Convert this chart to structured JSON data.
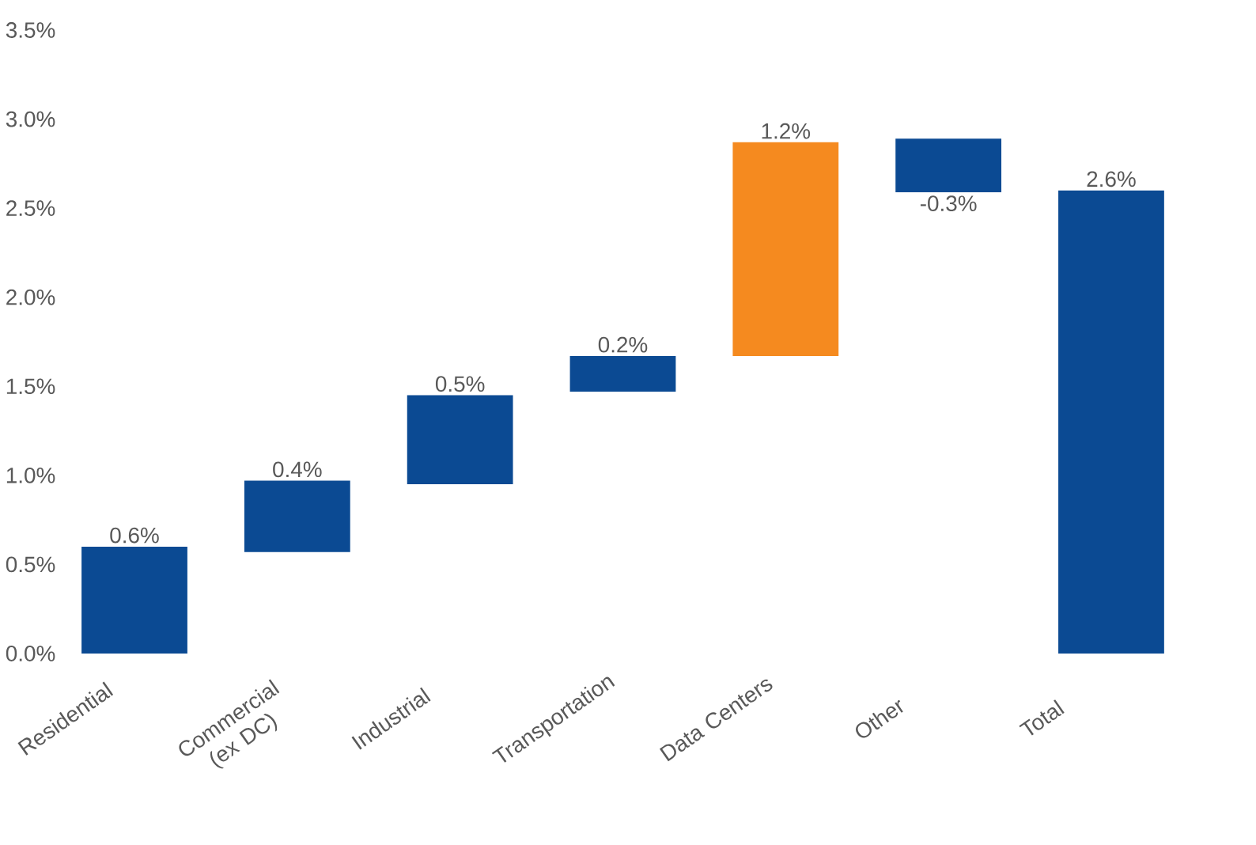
{
  "chart_data": {
    "type": "bar",
    "categories": [
      "Residential",
      "Commercial (ex DC)",
      "Industrial",
      "Transportation",
      "Data Centers",
      "Other",
      "Total"
    ],
    "values": [
      0.6,
      0.4,
      0.5,
      0.2,
      1.2,
      -0.3,
      2.6
    ],
    "base": [
      0,
      0.57,
      0.95,
      1.47,
      1.67,
      2.89,
      0
    ],
    "colors": [
      "#0b4a93",
      "#0b4a93",
      "#0b4a93",
      "#0b4a93",
      "#f58a1f",
      "#0b4a93",
      "#0b4a93"
    ],
    "value_labels": [
      "0.6%",
      "0.4%",
      "0.5%",
      "0.2%",
      "1.2%",
      "-0.3%",
      "2.6%"
    ],
    "ylim": [
      0,
      3.5
    ],
    "yticks": [
      {
        "value": 0,
        "label": "0.0%"
      },
      {
        "value": 0.5,
        "label": "0.5%"
      },
      {
        "value": 1,
        "label": "1.0%"
      },
      {
        "value": 1.5,
        "label": "1.5%"
      },
      {
        "value": 2,
        "label": "2.0%"
      },
      {
        "value": 2.5,
        "label": "2.5%"
      },
      {
        "value": 3,
        "label": "3.0%"
      },
      {
        "value": 3.5,
        "label": "3.5%"
      }
    ],
    "grid": false
  }
}
